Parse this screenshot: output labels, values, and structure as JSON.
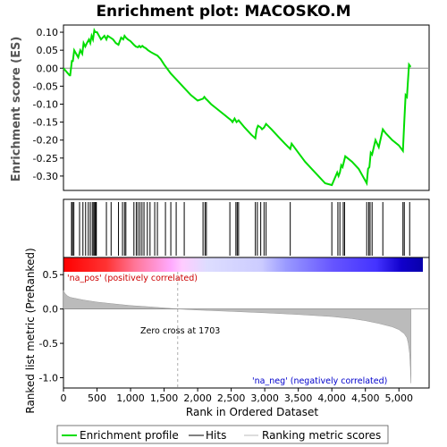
{
  "chart_data": {
    "type": "line",
    "title": "Enrichment plot: MACOSKO.M",
    "panels": [
      {
        "name": "enrichment",
        "ylabel": "Enrichment score (ES)",
        "ylim": [
          -0.34,
          0.12
        ],
        "yticks": [
          0.1,
          0.05,
          0.0,
          -0.05,
          -0.1,
          -0.15,
          -0.2,
          -0.25,
          -0.3
        ],
        "series": [
          {
            "name": "Enrichment profile",
            "color": "#00dd00",
            "x": [
              0,
              90,
              100,
              125,
              140,
              160,
              220,
              250,
              280,
              300,
              325,
              350,
              380,
              400,
              420,
              440,
              460,
              475,
              500,
              560,
              610,
              640,
              660,
              700,
              740,
              780,
              820,
              860,
              890,
              910,
              930,
              960,
              1000,
              1050,
              1080,
              1110,
              1130,
              1150,
              1175,
              1200,
              1230,
              1260,
              1300,
              1350,
              1400,
              1450,
              1500,
              1600,
              1700,
              1800,
              1900,
              2000,
              2080,
              2100,
              2120,
              2150,
              2200,
              2300,
              2400,
              2500,
              2520,
              2550,
              2580,
              2610,
              2700,
              2800,
              2860,
              2880,
              2900,
              2940,
              2960,
              2990,
              3020,
              3100,
              3200,
              3300,
              3380,
              3400,
              3500,
              3600,
              3700,
              3800,
              3900,
              4000,
              4080,
              4100,
              4120,
              4140,
              4160,
              4200,
              4300,
              4400,
              4520,
              4540,
              4560,
              4580,
              4600,
              4650,
              4700,
              4760,
              4800,
              4900,
              5000,
              5060,
              5080,
              5100,
              5120,
              5150,
              5170,
              5180
            ],
            "y": [
              0.0,
              -0.02,
              -0.02,
              0.02,
              0.02,
              0.05,
              0.03,
              0.05,
              0.04,
              0.07,
              0.06,
              0.07,
              0.08,
              0.07,
              0.09,
              0.08,
              0.105,
              0.1,
              0.1,
              0.08,
              0.09,
              0.08,
              0.09,
              0.085,
              0.08,
              0.07,
              0.065,
              0.085,
              0.08,
              0.09,
              0.085,
              0.08,
              0.075,
              0.065,
              0.06,
              0.058,
              0.062,
              0.058,
              0.062,
              0.058,
              0.055,
              0.05,
              0.045,
              0.04,
              0.035,
              0.025,
              0.01,
              -0.015,
              -0.035,
              -0.055,
              -0.075,
              -0.09,
              -0.085,
              -0.08,
              -0.085,
              -0.09,
              -0.1,
              -0.115,
              -0.13,
              -0.145,
              -0.15,
              -0.14,
              -0.15,
              -0.145,
              -0.165,
              -0.185,
              -0.195,
              -0.17,
              -0.16,
              -0.165,
              -0.17,
              -0.165,
              -0.155,
              -0.17,
              -0.19,
              -0.21,
              -0.225,
              -0.21,
              -0.235,
              -0.26,
              -0.28,
              -0.3,
              -0.32,
              -0.325,
              -0.29,
              -0.3,
              -0.29,
              -0.27,
              -0.275,
              -0.245,
              -0.26,
              -0.28,
              -0.32,
              -0.28,
              -0.275,
              -0.235,
              -0.24,
              -0.2,
              -0.22,
              -0.17,
              -0.18,
              -0.2,
              -0.215,
              -0.23,
              -0.15,
              -0.075,
              -0.08,
              0.01,
              0.005,
              0.005
            ]
          }
        ]
      },
      {
        "name": "hits",
        "series_name": "Hits",
        "hit_positions": [
          120,
          135,
          155,
          240,
          290,
          330,
          370,
          400,
          430,
          450,
          465,
          480,
          490,
          640,
          710,
          820,
          880,
          910,
          930,
          1050,
          1085,
          1110,
          1140,
          1170,
          1200,
          1250,
          1290,
          1360,
          1400,
          1520,
          1600,
          1680,
          1800,
          2080,
          2110,
          2130,
          2480,
          2570,
          2590,
          2610,
          2860,
          2890,
          2940,
          2990,
          3020,
          3380,
          4000,
          4090,
          4120,
          4170,
          4190,
          4520,
          4550,
          4570,
          4600,
          4760,
          5060,
          5080,
          5160
        ]
      },
      {
        "name": "ranking",
        "ylabel": "Ranked list metric (PreRanked)",
        "xlabel": "Rank in Ordered Dataset",
        "ylim": [
          -1.15,
          0.75
        ],
        "yticks": [
          0.5,
          0.0,
          -0.5,
          -1.0
        ],
        "xlim": [
          0,
          5450
        ],
        "xticks": [
          0,
          500,
          1000,
          1500,
          2000,
          2500,
          3000,
          3500,
          4000,
          4500,
          5000
        ],
        "xtick_labels": [
          "0",
          "500",
          "1,000",
          "1,500",
          "2,000",
          "2,500",
          "3,000",
          "3,500",
          "4,000",
          "4,500",
          "5,000"
        ],
        "series_name": "Ranking metric scores",
        "color": "#bbbbbb",
        "curve_x": [
          0,
          20,
          60,
          100,
          200,
          300,
          500,
          800,
          1000,
          1300,
          1703,
          2000,
          2500,
          3000,
          3500,
          4000,
          4300,
          4500,
          4700,
          4900,
          5000,
          5080,
          5120,
          5140,
          5160,
          5170,
          5180
        ],
        "curve_y": [
          0.27,
          0.23,
          0.19,
          0.17,
          0.15,
          0.13,
          0.1,
          0.07,
          0.05,
          0.03,
          0.0,
          -0.015,
          -0.035,
          -0.055,
          -0.08,
          -0.11,
          -0.14,
          -0.17,
          -0.21,
          -0.26,
          -0.3,
          -0.36,
          -0.42,
          -0.5,
          -0.65,
          -0.85,
          -1.08
        ],
        "zero_cross": 1703,
        "zero_cross_label": "Zero cross at 1703",
        "pos_label": "'na_pos' (positively correlated)",
        "neg_label": "'na_neg' (negatively correlated)"
      }
    ],
    "legend": {
      "placement": "bottom",
      "entries": [
        "Enrichment profile",
        "Hits",
        "Ranking metric scores"
      ]
    }
  },
  "colors": {
    "es_line": "#00dd00",
    "hit": "#000000",
    "ranking": "#bbbbbb",
    "pos_text": "#cc0000",
    "neg_text": "#0000cc",
    "gradient_red": "#ff0000",
    "gradient_pink": "#ffaaff",
    "gradient_lavender": "#ccccff",
    "gradient_blue": "#4433ff",
    "gradient_navy": "#1100cc"
  }
}
